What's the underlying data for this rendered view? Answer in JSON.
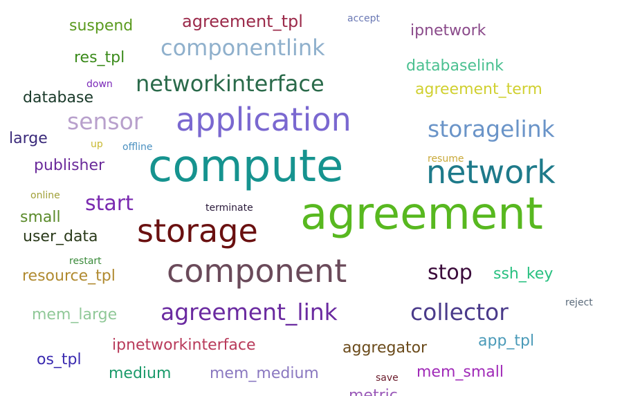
{
  "words": [
    {
      "text": "suspend",
      "color": "#5a9a1e"
    },
    {
      "text": "agreement_tpl",
      "color": "#9b2a4a"
    },
    {
      "text": "accept",
      "color": "#6a78b4"
    },
    {
      "text": "ipnetwork",
      "color": "#8a4a8a"
    },
    {
      "text": "componentlink",
      "color": "#8fb0cc"
    },
    {
      "text": "res_tpl",
      "color": "#3a8a1a"
    },
    {
      "text": "databaselink",
      "color": "#4ac090"
    },
    {
      "text": "down",
      "color": "#7a28b8"
    },
    {
      "text": "networkinterface",
      "color": "#2a6a4a"
    },
    {
      "text": "agreement_term",
      "color": "#d0d030"
    },
    {
      "text": "database",
      "color": "#1a3a2a"
    },
    {
      "text": "sensor",
      "color": "#b8a0cc"
    },
    {
      "text": "application",
      "color": "#7a68d0"
    },
    {
      "text": "storagelink",
      "color": "#6a94c8"
    },
    {
      "text": "large",
      "color": "#3a2a7a"
    },
    {
      "text": "up",
      "color": "#c8b830"
    },
    {
      "text": "offline",
      "color": "#4a90c0"
    },
    {
      "text": "compute",
      "color": "#16938f"
    },
    {
      "text": "resume",
      "color": "#c8a838"
    },
    {
      "text": "publisher",
      "color": "#6a2a9a"
    },
    {
      "text": "network",
      "color": "#1e7a8a"
    },
    {
      "text": "online",
      "color": "#a0a038"
    },
    {
      "text": "start",
      "color": "#7a2ab0"
    },
    {
      "text": "terminate",
      "color": "#2a1a3a"
    },
    {
      "text": "small",
      "color": "#5a8a2a"
    },
    {
      "text": "agreement",
      "color": "#58b820"
    },
    {
      "text": "storage",
      "color": "#6a1010"
    },
    {
      "text": "user_data",
      "color": "#2a3a1a"
    },
    {
      "text": "restart",
      "color": "#3a8a3a"
    },
    {
      "text": "component",
      "color": "#6a4a5a"
    },
    {
      "text": "resource_tpl",
      "color": "#b08a30"
    },
    {
      "text": "stop",
      "color": "#3a0a3a"
    },
    {
      "text": "ssh_key",
      "color": "#28c080"
    },
    {
      "text": "reject",
      "color": "#5a6a7a"
    },
    {
      "text": "mem_large",
      "color": "#90c898"
    },
    {
      "text": "agreement_link",
      "color": "#6a2aa0"
    },
    {
      "text": "collector",
      "color": "#4a3a8a"
    },
    {
      "text": "app_tpl",
      "color": "#4a9ab8"
    },
    {
      "text": "ipnetworkinterface",
      "color": "#b83a5a"
    },
    {
      "text": "aggregator",
      "color": "#6a4a1a"
    },
    {
      "text": "os_tpl",
      "color": "#3a2ab0"
    },
    {
      "text": "medium",
      "color": "#1a9a6a"
    },
    {
      "text": "mem_medium",
      "color": "#8a78c0"
    },
    {
      "text": "save",
      "color": "#6a1a2a"
    },
    {
      "text": "mem_small",
      "color": "#a02ab8"
    },
    {
      "text": "metric",
      "color": "#9a5ab8"
    }
  ]
}
